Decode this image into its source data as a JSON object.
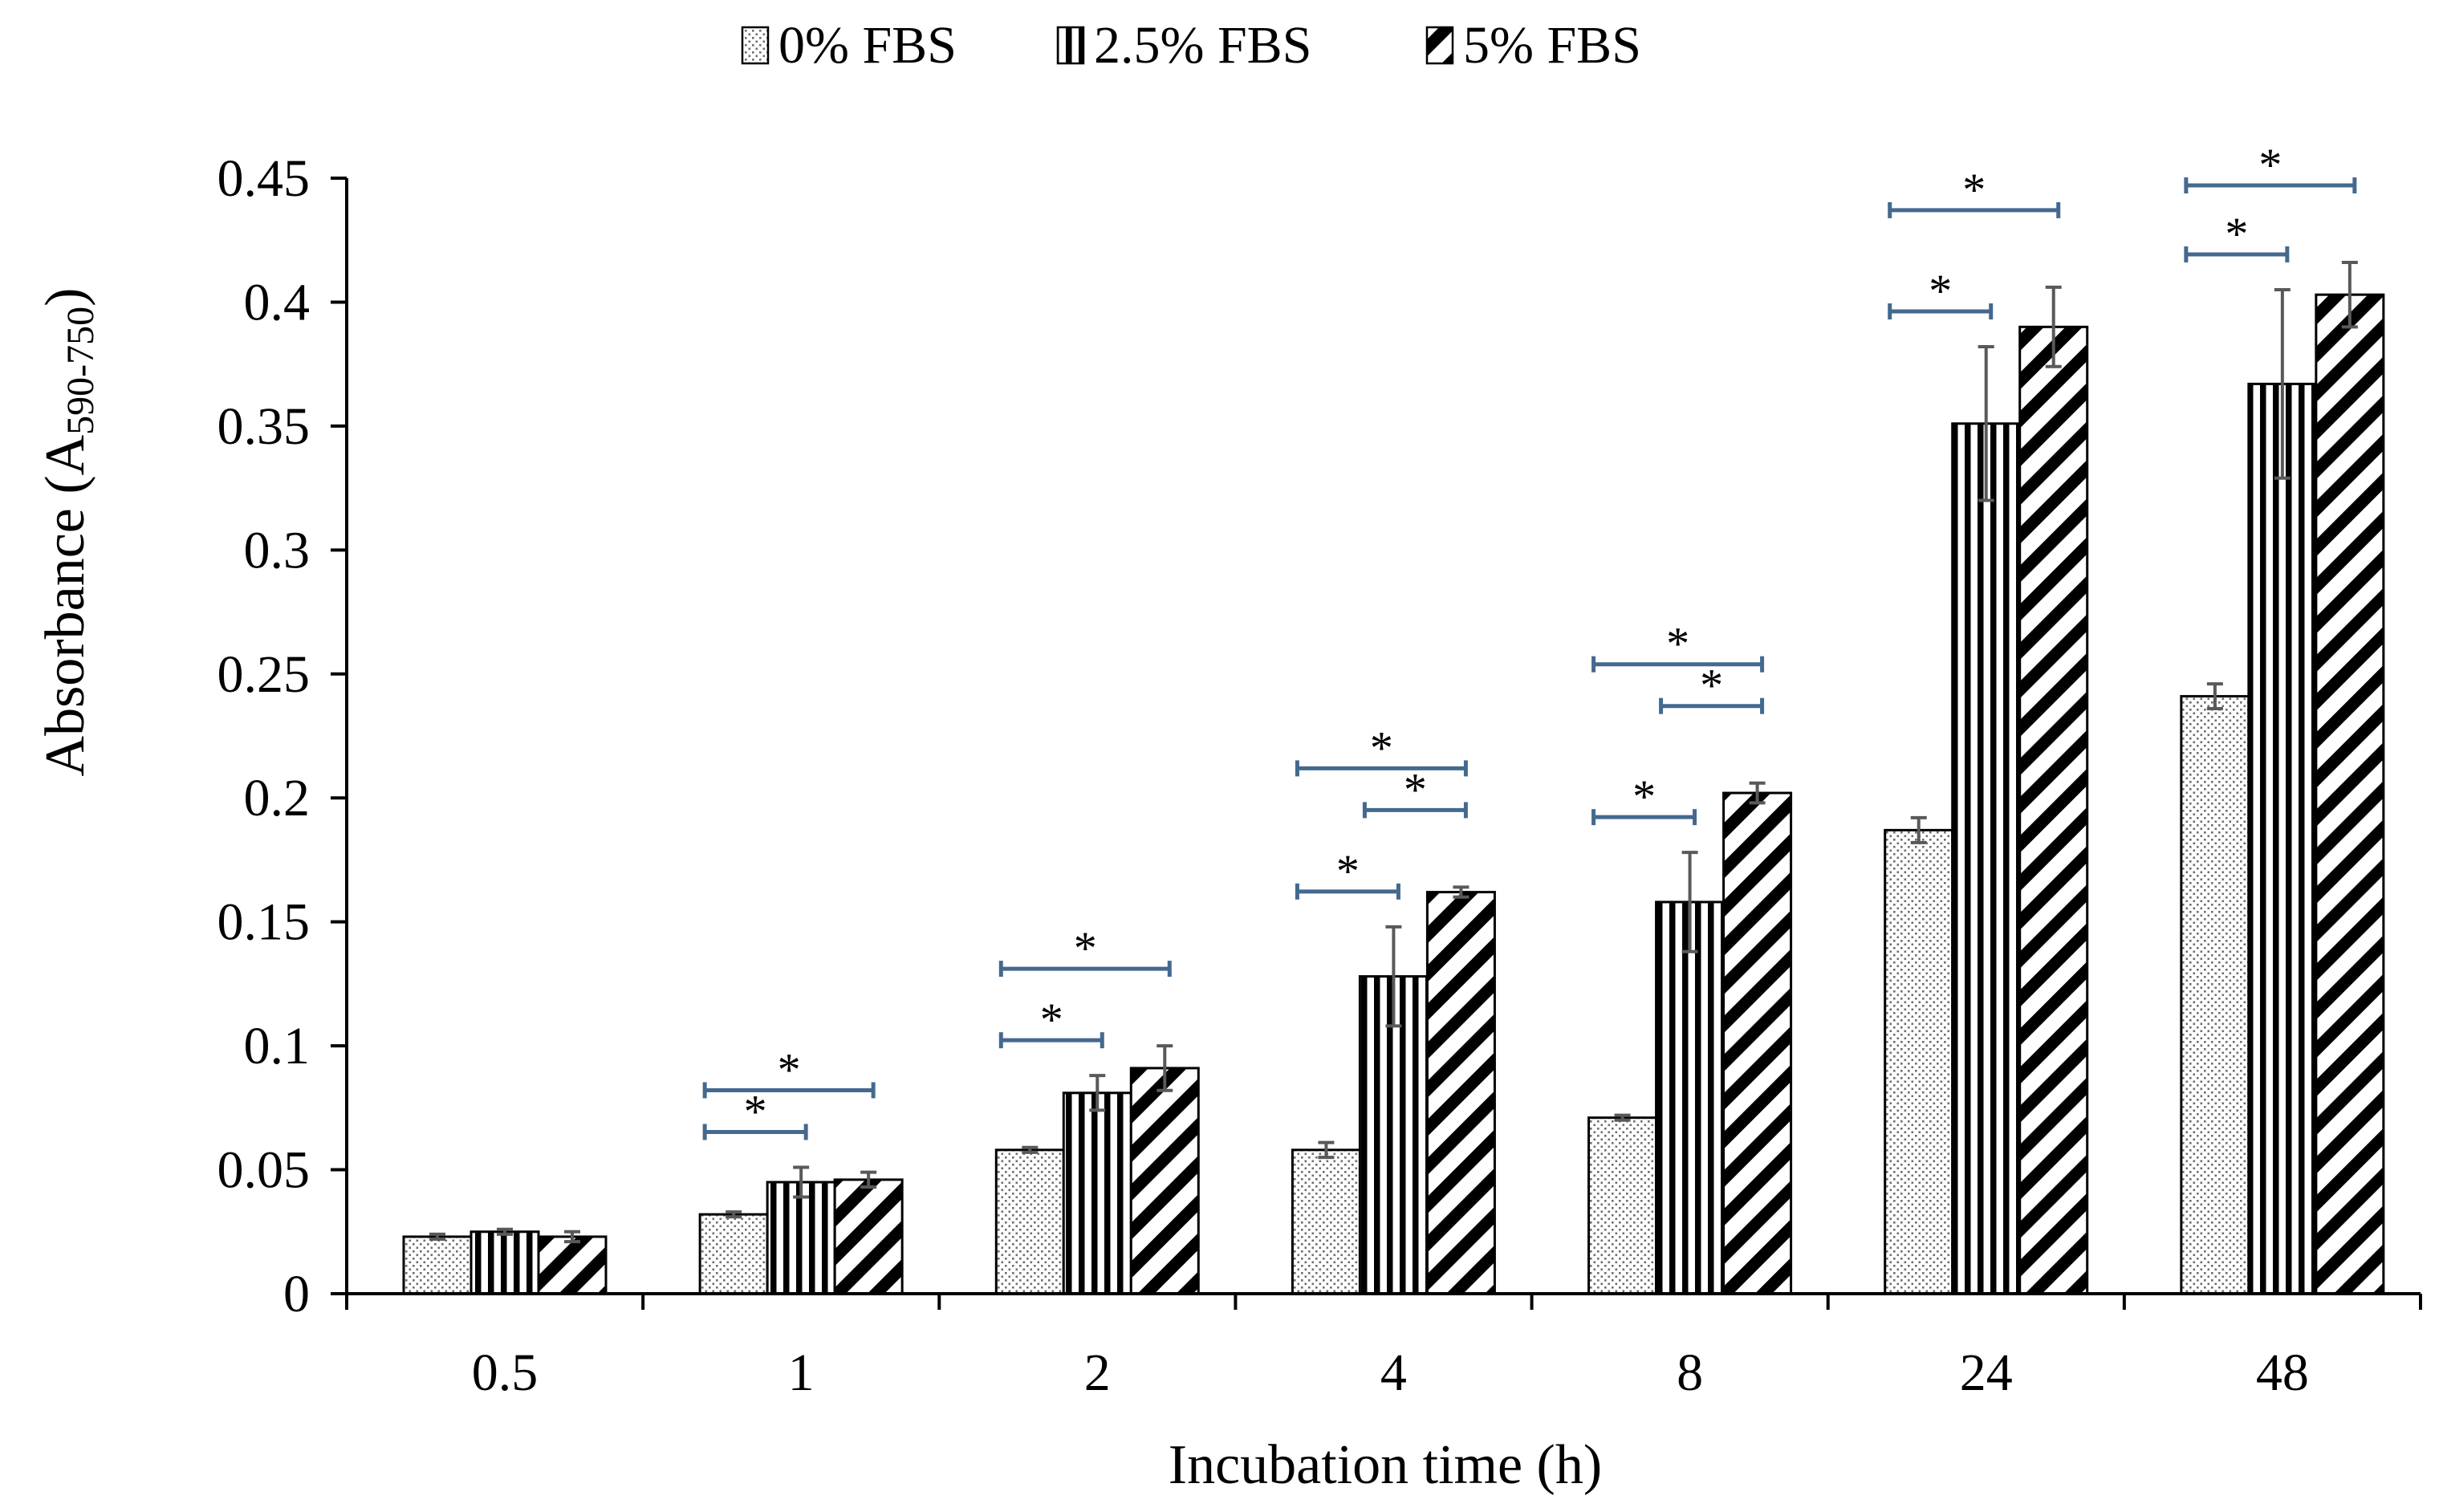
{
  "chart_data": {
    "type": "bar",
    "title": "",
    "xlabel": "Incubation time (h)",
    "ylabel": {
      "main": "Absorbance (A",
      "subscript": "590-750",
      "close": ")"
    },
    "ylim": [
      0,
      0.45
    ],
    "yticks": [
      0,
      0.05,
      0.1,
      0.15,
      0.2,
      0.25,
      0.3,
      0.35,
      0.4,
      0.45
    ],
    "ytick_labels": [
      "0",
      "0.05",
      "0.1",
      "0.15",
      "0.2",
      "0.25",
      "0.3",
      "0.35",
      "0.4",
      "0.45"
    ],
    "grid": false,
    "legend_position": "top-center",
    "categories": [
      "0.5",
      "1",
      "2",
      "4",
      "8",
      "24",
      "48"
    ],
    "series": [
      {
        "name": "0% FBS",
        "pattern": "dots",
        "values": [
          0.023,
          0.032,
          0.058,
          0.058,
          0.071,
          0.187,
          0.241
        ],
        "errors": [
          0.001,
          0.001,
          0.001,
          0.003,
          0.001,
          0.005,
          0.005
        ]
      },
      {
        "name": "2.5% FBS",
        "pattern": "vertical-stripes",
        "values": [
          0.025,
          0.045,
          0.081,
          0.128,
          0.158,
          0.351,
          0.367
        ],
        "errors": [
          0.001,
          0.006,
          0.007,
          0.02,
          0.02,
          0.031,
          0.038
        ]
      },
      {
        "name": "5% FBS",
        "pattern": "diagonal-stripes",
        "values": [
          0.023,
          0.046,
          0.091,
          0.162,
          0.202,
          0.39,
          0.403
        ],
        "errors": [
          0.002,
          0.003,
          0.009,
          0.002,
          0.004,
          0.016,
          0.013
        ]
      }
    ],
    "significance_brackets": [
      {
        "category": "1",
        "from_series": 0,
        "to_series": 1,
        "label": "*"
      },
      {
        "category": "1",
        "from_series": 0,
        "to_series": 2,
        "label": "*"
      },
      {
        "category": "2",
        "from_series": 0,
        "to_series": 1,
        "label": "*"
      },
      {
        "category": "2",
        "from_series": 0,
        "to_series": 2,
        "label": "*"
      },
      {
        "category": "4",
        "from_series": 0,
        "to_series": 1,
        "label": "*"
      },
      {
        "category": "4",
        "from_series": 1,
        "to_series": 2,
        "label": "*"
      },
      {
        "category": "4",
        "from_series": 0,
        "to_series": 2,
        "label": "*"
      },
      {
        "category": "8",
        "from_series": 0,
        "to_series": 1,
        "label": "*"
      },
      {
        "category": "8",
        "from_series": 1,
        "to_series": 2,
        "label": "*"
      },
      {
        "category": "8",
        "from_series": 0,
        "to_series": 2,
        "label": "*"
      },
      {
        "category": "24",
        "from_series": 0,
        "to_series": 1,
        "label": "*"
      },
      {
        "category": "24",
        "from_series": 0,
        "to_series": 2,
        "label": "*"
      },
      {
        "category": "48",
        "from_series": 0,
        "to_series": 1,
        "label": "*"
      },
      {
        "category": "48",
        "from_series": 0,
        "to_series": 2,
        "label": "*"
      }
    ],
    "colors": {
      "bar_outline": "#000000",
      "error_bar": "#595959",
      "bracket": "#44698f",
      "axis": "#000000"
    }
  }
}
